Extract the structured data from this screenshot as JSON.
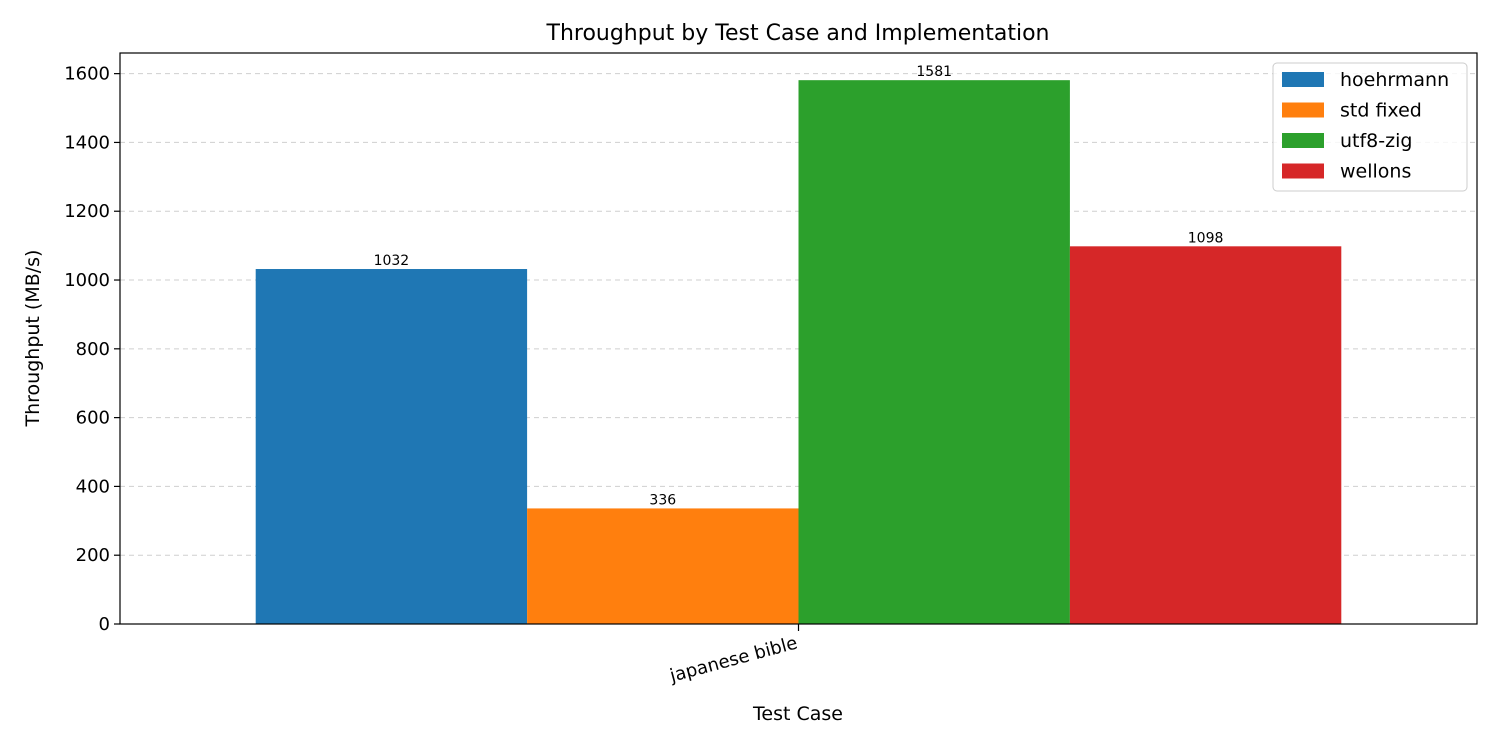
{
  "chart_data": {
    "type": "bar",
    "title": "Throughput by Test Case and Implementation",
    "xlabel": "Test Case",
    "ylabel": "Throughput (MB/s)",
    "categories": [
      "japanese bible"
    ],
    "series": [
      {
        "name": "hoehrmann",
        "values": [
          1032
        ],
        "color": "#1f77b4"
      },
      {
        "name": "std fixed",
        "values": [
          336
        ],
        "color": "#ff7f0e"
      },
      {
        "name": "utf8-zig",
        "values": [
          1581
        ],
        "color": "#2ca02c"
      },
      {
        "name": "wellons",
        "values": [
          1098
        ],
        "color": "#d62728"
      }
    ],
    "ylim": [
      0,
      1660
    ],
    "yticks": [
      0,
      200,
      400,
      600,
      800,
      1000,
      1200,
      1400,
      1600
    ],
    "grid": "y-dashed",
    "legend_position": "top-right",
    "data_labels": true
  }
}
